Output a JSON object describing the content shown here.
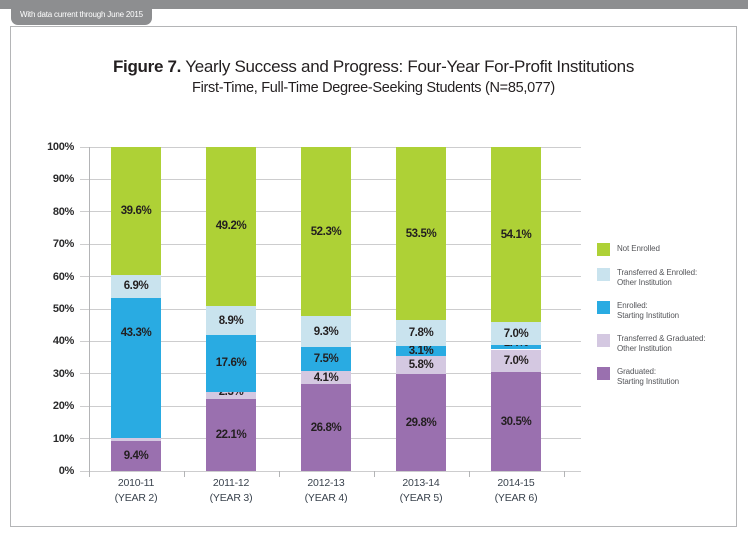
{
  "banner": {
    "tab_label": "With data current through June 2015"
  },
  "title": {
    "prefix": "Figure 7.",
    "rest": " Yearly Success and Progress: Four-Year For-Profit Institutions"
  },
  "subtitle": "First-Time, Full-Time Degree-Seeking Students (N=85,077)",
  "colors": {
    "not_enrolled": "#aed136",
    "transferred_enrolled": "#c9e3ee",
    "enrolled": "#29abe2",
    "transferred_graduated": "#d4c8e1",
    "graduated": "#9a70af",
    "gridline": "#cdcdce",
    "axis": "#b3b4b6",
    "banner_gray": "#8d8e90",
    "label_text": "#231f20"
  },
  "chart_data": {
    "type": "bar",
    "stacked": true,
    "title": "Figure 7. Yearly Success and Progress: Four-Year For-Profit Institutions",
    "subtitle": "First-Time, Full-Time Degree-Seeking Students (N=85,077)",
    "categories": [
      {
        "year": "2010-11",
        "sub": "(YEAR 2)"
      },
      {
        "year": "2011-12",
        "sub": "(YEAR 3)"
      },
      {
        "year": "2012-13",
        "sub": "(YEAR 4)"
      },
      {
        "year": "2013-14",
        "sub": "(YEAR 5)"
      },
      {
        "year": "2014-15",
        "sub": "(YEAR 6)"
      }
    ],
    "series": [
      {
        "name": "Graduated: Starting Institution",
        "color": "#9a70af",
        "values": [
          9.4,
          22.1,
          26.8,
          29.8,
          30.5
        ],
        "label_dy": [
          0,
          0,
          0,
          0,
          0
        ]
      },
      {
        "name": "Transferred & Graduated: Other Institution",
        "color": "#d4c8e1",
        "values": [
          0.8,
          2.3,
          4.1,
          5.8,
          7.0
        ],
        "label_dy": [
          -5,
          -4,
          0,
          0,
          0
        ]
      },
      {
        "name": "Enrolled: Starting Institution",
        "color": "#29abe2",
        "values": [
          43.3,
          17.6,
          7.5,
          3.1,
          1.4
        ],
        "label_dy": [
          -35,
          0,
          0,
          0,
          -4
        ]
      },
      {
        "name": "Transferred & Enrolled: Other Institution",
        "color": "#c9e3ee",
        "values": [
          6.9,
          8.9,
          9.3,
          7.8,
          7.0
        ],
        "label_dy": [
          0,
          0,
          0,
          0,
          0
        ]
      },
      {
        "name": "Not Enrolled",
        "color": "#aed136",
        "values": [
          39.6,
          49.2,
          52.3,
          53.5,
          54.1
        ],
        "label_dy": [
          0,
          0,
          0,
          0,
          0
        ]
      }
    ],
    "value_suffix": "%",
    "y_axis": {
      "min": 0,
      "max": 100,
      "step": 10,
      "suffix": "%",
      "grid": true
    },
    "legend_position": "right",
    "legend": [
      {
        "label": "Not Enrolled",
        "color": "#aed136"
      },
      {
        "label": "Transferred & Enrolled:\nOther Institution",
        "color": "#c9e3ee"
      },
      {
        "label": "Enrolled:\nStarting Institution",
        "color": "#29abe2"
      },
      {
        "label": "Transferred & Graduated:\nOther Institution",
        "color": "#d4c8e1"
      },
      {
        "label": "Graduated:\nStarting Institution",
        "color": "#9a70af"
      }
    ]
  }
}
